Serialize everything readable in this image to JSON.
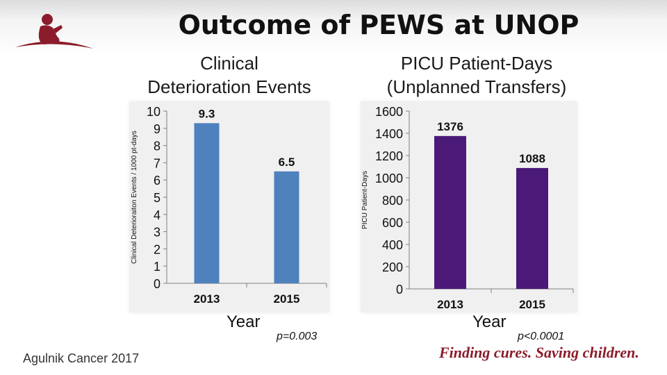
{
  "title": "Outcome of PEWS at UNOP",
  "footer": {
    "citation": "Agulnik Cancer 2017",
    "tagline": "Finding cures. Saving children."
  },
  "colors": {
    "left_bar": "#4f81bd",
    "right_bar": "#4b1a78",
    "brand": "#8b1c2b"
  },
  "left": {
    "subtitle_line1": "Clinical",
    "subtitle_line2": "Deterioration Events",
    "xlabel": "Year",
    "pvalue": "p=0.003"
  },
  "right": {
    "subtitle_line1": "PICU Patient-Days",
    "subtitle_line2": "(Unplanned Transfers)",
    "xlabel": "Year",
    "pvalue": "p<0.0001"
  },
  "chart_data": [
    {
      "type": "bar",
      "title": "Clinical Deterioration Events",
      "categories": [
        "2013",
        "2015"
      ],
      "values": [
        9.3,
        6.5
      ],
      "value_labels": [
        "9.3",
        "6.5"
      ],
      "ylabel": "Clinical Deterioraiton Events / 1000 pt-days",
      "xlabel": "Year",
      "ylim": [
        0,
        10
      ],
      "yticks": [
        "0",
        "1",
        "2",
        "3",
        "4",
        "5",
        "6",
        "7",
        "8",
        "9",
        "10"
      ]
    },
    {
      "type": "bar",
      "title": "PICU Patient-Days (Unplanned Transfers)",
      "categories": [
        "2013",
        "2015"
      ],
      "values": [
        1376,
        1088
      ],
      "value_labels": [
        "1376",
        "1088"
      ],
      "ylabel": "PICU Patient-Days",
      "xlabel": "Year",
      "ylim": [
        0,
        1600
      ],
      "yticks": [
        "0",
        "200",
        "400",
        "600",
        "800",
        "1000",
        "1200",
        "1400",
        "1600"
      ]
    }
  ]
}
